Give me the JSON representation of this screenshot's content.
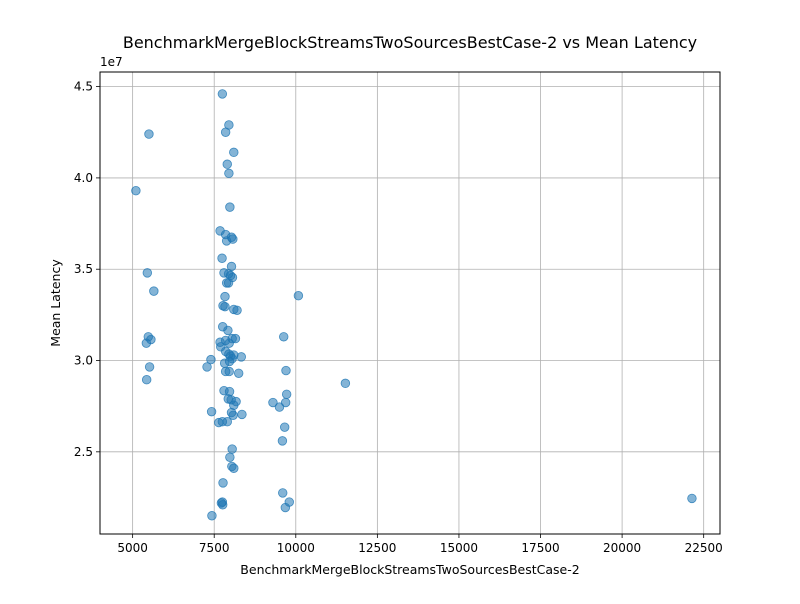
{
  "chart_data": {
    "type": "scatter",
    "title": "BenchmarkMergeBlockStreamsTwoSourcesBestCase-2 vs Mean Latency",
    "xlabel": "BenchmarkMergeBlockStreamsTwoSourcesBestCase-2",
    "ylabel": "Mean Latency",
    "y_offset_label": "1e7",
    "xlim": [
      4000,
      23000
    ],
    "ylim": [
      20500000,
      45800000
    ],
    "x_ticks": [
      5000,
      7500,
      10000,
      12500,
      15000,
      17500,
      20000,
      22500
    ],
    "x_tick_labels": [
      "5000",
      "7500",
      "10000",
      "12500",
      "15000",
      "17500",
      "20000",
      "22500"
    ],
    "y_ticks": [
      25000000,
      30000000,
      35000000,
      40000000,
      45000000
    ],
    "y_tick_labels": [
      "2.5",
      "3.0",
      "3.5",
      "4.0",
      "4.5"
    ],
    "grid": true,
    "point_color": "#1f77b4",
    "point_alpha": 0.55,
    "points": [
      [
        5100,
        39300000
      ],
      [
        5500,
        42400000
      ],
      [
        5450,
        34800000
      ],
      [
        5650,
        33800000
      ],
      [
        5480,
        31300000
      ],
      [
        5420,
        30950000
      ],
      [
        5560,
        31150000
      ],
      [
        5520,
        29650000
      ],
      [
        5430,
        28950000
      ],
      [
        7750,
        44600000
      ],
      [
        7950,
        42900000
      ],
      [
        7850,
        42500000
      ],
      [
        8100,
        41400000
      ],
      [
        7900,
        40750000
      ],
      [
        7950,
        40250000
      ],
      [
        7980,
        38400000
      ],
      [
        7680,
        37100000
      ],
      [
        7850,
        36900000
      ],
      [
        7880,
        36550000
      ],
      [
        8030,
        36750000
      ],
      [
        8070,
        36650000
      ],
      [
        7740,
        35600000
      ],
      [
        8030,
        35150000
      ],
      [
        7800,
        34800000
      ],
      [
        7940,
        34750000
      ],
      [
        8000,
        34650000
      ],
      [
        8060,
        34550000
      ],
      [
        7880,
        34250000
      ],
      [
        7940,
        34250000
      ],
      [
        7830,
        33500000
      ],
      [
        7770,
        33000000
      ],
      [
        7830,
        32950000
      ],
      [
        8100,
        32800000
      ],
      [
        8200,
        32750000
      ],
      [
        7760,
        31850000
      ],
      [
        7920,
        31650000
      ],
      [
        7680,
        31000000
      ],
      [
        7850,
        31100000
      ],
      [
        7960,
        30950000
      ],
      [
        8050,
        31200000
      ],
      [
        8150,
        31200000
      ],
      [
        7700,
        30750000
      ],
      [
        7850,
        30500000
      ],
      [
        7950,
        30350000
      ],
      [
        8000,
        30250000
      ],
      [
        8100,
        30300000
      ],
      [
        8050,
        30100000
      ],
      [
        7970,
        29950000
      ],
      [
        8330,
        30200000
      ],
      [
        7820,
        29850000
      ],
      [
        7280,
        29650000
      ],
      [
        7400,
        30050000
      ],
      [
        7960,
        29400000
      ],
      [
        7850,
        29400000
      ],
      [
        8250,
        29300000
      ],
      [
        7800,
        28350000
      ],
      [
        7970,
        28300000
      ],
      [
        7930,
        27900000
      ],
      [
        8020,
        27850000
      ],
      [
        8100,
        27550000
      ],
      [
        8170,
        27750000
      ],
      [
        7420,
        27200000
      ],
      [
        8030,
        27150000
      ],
      [
        8080,
        27000000
      ],
      [
        8350,
        27050000
      ],
      [
        7640,
        26600000
      ],
      [
        7750,
        26650000
      ],
      [
        7900,
        26650000
      ],
      [
        8050,
        25150000
      ],
      [
        7980,
        24700000
      ],
      [
        8040,
        24200000
      ],
      [
        8100,
        24100000
      ],
      [
        7770,
        23300000
      ],
      [
        7750,
        22250000
      ],
      [
        7720,
        22200000
      ],
      [
        7760,
        22100000
      ],
      [
        7430,
        21500000
      ],
      [
        9300,
        27700000
      ],
      [
        9500,
        27450000
      ],
      [
        9630,
        31300000
      ],
      [
        9700,
        29450000
      ],
      [
        9720,
        28150000
      ],
      [
        9690,
        27700000
      ],
      [
        9660,
        26350000
      ],
      [
        9590,
        25600000
      ],
      [
        9600,
        22750000
      ],
      [
        9800,
        22250000
      ],
      [
        9680,
        21950000
      ],
      [
        10080,
        33550000
      ],
      [
        11520,
        28750000
      ],
      [
        22140,
        22450000
      ]
    ]
  }
}
